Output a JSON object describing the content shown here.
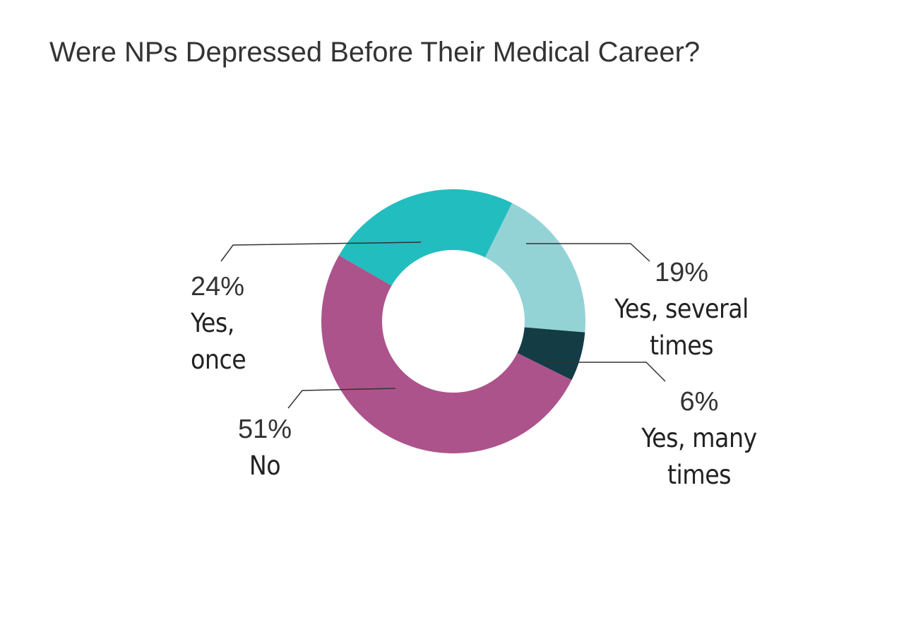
{
  "chart_data": {
    "type": "donut",
    "title": "Were NPs Depressed Before Their Medical Career?",
    "categories": [
      "Yes, several times",
      "Yes, many times",
      "No",
      "Yes, once"
    ],
    "values": [
      19,
      6,
      51,
      24
    ],
    "value_labels": [
      "19%",
      "6%",
      "51%",
      "24%"
    ],
    "colors": [
      "#93d3d6",
      "#143c45",
      "#ac538c",
      "#22bdbf"
    ]
  }
}
